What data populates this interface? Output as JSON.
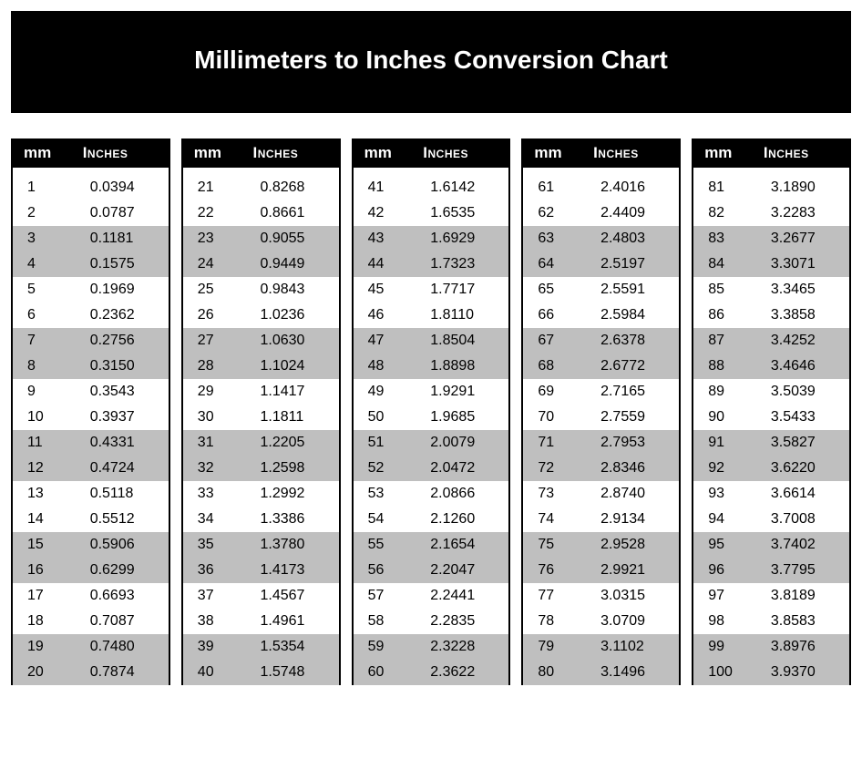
{
  "title": "Millimeters to Inches Conversion Chart",
  "header_mm": "mm",
  "header_in": "Inches",
  "colors": {
    "title_bg": "#000000",
    "title_fg": "#ffffff",
    "header_bg": "#000000",
    "header_fg": "#ffffff",
    "row_shade": "#bfbfbf",
    "row_plain": "#ffffff",
    "border": "#000000",
    "text": "#000000"
  },
  "typography": {
    "title_fontsize_pt": 21,
    "header_fontsize_pt": 13,
    "body_fontsize_pt": 12,
    "font_family": "Arial"
  },
  "layout": {
    "columns": 5,
    "rows_per_column": 20,
    "shade_pattern": "pairs of 2 shaded after every 2 plain, starting at row 3"
  },
  "tables": [
    {
      "rows": [
        {
          "mm": "1",
          "in": "0.0394",
          "shade": false
        },
        {
          "mm": "2",
          "in": "0.0787",
          "shade": false
        },
        {
          "mm": "3",
          "in": "0.1181",
          "shade": true
        },
        {
          "mm": "4",
          "in": "0.1575",
          "shade": true
        },
        {
          "mm": "5",
          "in": "0.1969",
          "shade": false
        },
        {
          "mm": "6",
          "in": "0.2362",
          "shade": false
        },
        {
          "mm": "7",
          "in": "0.2756",
          "shade": true
        },
        {
          "mm": "8",
          "in": "0.3150",
          "shade": true
        },
        {
          "mm": "9",
          "in": "0.3543",
          "shade": false
        },
        {
          "mm": "10",
          "in": "0.3937",
          "shade": false
        },
        {
          "mm": "11",
          "in": "0.4331",
          "shade": true
        },
        {
          "mm": "12",
          "in": "0.4724",
          "shade": true
        },
        {
          "mm": "13",
          "in": "0.5118",
          "shade": false
        },
        {
          "mm": "14",
          "in": "0.5512",
          "shade": false
        },
        {
          "mm": "15",
          "in": "0.5906",
          "shade": true
        },
        {
          "mm": "16",
          "in": "0.6299",
          "shade": true
        },
        {
          "mm": "17",
          "in": "0.6693",
          "shade": false
        },
        {
          "mm": "18",
          "in": "0.7087",
          "shade": false
        },
        {
          "mm": "19",
          "in": "0.7480",
          "shade": true
        },
        {
          "mm": "20",
          "in": "0.7874",
          "shade": true
        }
      ]
    },
    {
      "rows": [
        {
          "mm": "21",
          "in": "0.8268",
          "shade": false
        },
        {
          "mm": "22",
          "in": "0.8661",
          "shade": false
        },
        {
          "mm": "23",
          "in": "0.9055",
          "shade": true
        },
        {
          "mm": "24",
          "in": "0.9449",
          "shade": true
        },
        {
          "mm": "25",
          "in": "0.9843",
          "shade": false
        },
        {
          "mm": "26",
          "in": "1.0236",
          "shade": false
        },
        {
          "mm": "27",
          "in": "1.0630",
          "shade": true
        },
        {
          "mm": "28",
          "in": "1.1024",
          "shade": true
        },
        {
          "mm": "29",
          "in": "1.1417",
          "shade": false
        },
        {
          "mm": "30",
          "in": "1.1811",
          "shade": false
        },
        {
          "mm": "31",
          "in": "1.2205",
          "shade": true
        },
        {
          "mm": "32",
          "in": "1.2598",
          "shade": true
        },
        {
          "mm": "33",
          "in": "1.2992",
          "shade": false
        },
        {
          "mm": "34",
          "in": "1.3386",
          "shade": false
        },
        {
          "mm": "35",
          "in": "1.3780",
          "shade": true
        },
        {
          "mm": "36",
          "in": "1.4173",
          "shade": true
        },
        {
          "mm": "37",
          "in": "1.4567",
          "shade": false
        },
        {
          "mm": "38",
          "in": "1.4961",
          "shade": false
        },
        {
          "mm": "39",
          "in": "1.5354",
          "shade": true
        },
        {
          "mm": "40",
          "in": "1.5748",
          "shade": true
        }
      ]
    },
    {
      "rows": [
        {
          "mm": "41",
          "in": "1.6142",
          "shade": false
        },
        {
          "mm": "42",
          "in": "1.6535",
          "shade": false
        },
        {
          "mm": "43",
          "in": "1.6929",
          "shade": true
        },
        {
          "mm": "44",
          "in": "1.7323",
          "shade": true
        },
        {
          "mm": "45",
          "in": "1.7717",
          "shade": false
        },
        {
          "mm": "46",
          "in": "1.8110",
          "shade": false
        },
        {
          "mm": "47",
          "in": "1.8504",
          "shade": true
        },
        {
          "mm": "48",
          "in": "1.8898",
          "shade": true
        },
        {
          "mm": "49",
          "in": "1.9291",
          "shade": false
        },
        {
          "mm": "50",
          "in": "1.9685",
          "shade": false
        },
        {
          "mm": "51",
          "in": "2.0079",
          "shade": true
        },
        {
          "mm": "52",
          "in": "2.0472",
          "shade": true
        },
        {
          "mm": "53",
          "in": "2.0866",
          "shade": false
        },
        {
          "mm": "54",
          "in": "2.1260",
          "shade": false
        },
        {
          "mm": "55",
          "in": "2.1654",
          "shade": true
        },
        {
          "mm": "56",
          "in": "2.2047",
          "shade": true
        },
        {
          "mm": "57",
          "in": "2.2441",
          "shade": false
        },
        {
          "mm": "58",
          "in": "2.2835",
          "shade": false
        },
        {
          "mm": "59",
          "in": "2.3228",
          "shade": true
        },
        {
          "mm": "60",
          "in": "2.3622",
          "shade": true
        }
      ]
    },
    {
      "rows": [
        {
          "mm": "61",
          "in": "2.4016",
          "shade": false
        },
        {
          "mm": "62",
          "in": "2.4409",
          "shade": false
        },
        {
          "mm": "63",
          "in": "2.4803",
          "shade": true
        },
        {
          "mm": "64",
          "in": "2.5197",
          "shade": true
        },
        {
          "mm": "65",
          "in": "2.5591",
          "shade": false
        },
        {
          "mm": "66",
          "in": "2.5984",
          "shade": false
        },
        {
          "mm": "67",
          "in": "2.6378",
          "shade": true
        },
        {
          "mm": "68",
          "in": "2.6772",
          "shade": true
        },
        {
          "mm": "69",
          "in": "2.7165",
          "shade": false
        },
        {
          "mm": "70",
          "in": "2.7559",
          "shade": false
        },
        {
          "mm": "71",
          "in": "2.7953",
          "shade": true
        },
        {
          "mm": "72",
          "in": "2.8346",
          "shade": true
        },
        {
          "mm": "73",
          "in": "2.8740",
          "shade": false
        },
        {
          "mm": "74",
          "in": "2.9134",
          "shade": false
        },
        {
          "mm": "75",
          "in": "2.9528",
          "shade": true
        },
        {
          "mm": "76",
          "in": "2.9921",
          "shade": true
        },
        {
          "mm": "77",
          "in": "3.0315",
          "shade": false
        },
        {
          "mm": "78",
          "in": "3.0709",
          "shade": false
        },
        {
          "mm": "79",
          "in": "3.1102",
          "shade": true
        },
        {
          "mm": "80",
          "in": "3.1496",
          "shade": true
        }
      ]
    },
    {
      "rows": [
        {
          "mm": "81",
          "in": "3.1890",
          "shade": false
        },
        {
          "mm": "82",
          "in": "3.2283",
          "shade": false
        },
        {
          "mm": "83",
          "in": "3.2677",
          "shade": true
        },
        {
          "mm": "84",
          "in": "3.3071",
          "shade": true
        },
        {
          "mm": "85",
          "in": "3.3465",
          "shade": false
        },
        {
          "mm": "86",
          "in": "3.3858",
          "shade": false
        },
        {
          "mm": "87",
          "in": "3.4252",
          "shade": true
        },
        {
          "mm": "88",
          "in": "3.4646",
          "shade": true
        },
        {
          "mm": "89",
          "in": "3.5039",
          "shade": false
        },
        {
          "mm": "90",
          "in": "3.5433",
          "shade": false
        },
        {
          "mm": "91",
          "in": "3.5827",
          "shade": true
        },
        {
          "mm": "92",
          "in": "3.6220",
          "shade": true
        },
        {
          "mm": "93",
          "in": "3.6614",
          "shade": false
        },
        {
          "mm": "94",
          "in": "3.7008",
          "shade": false
        },
        {
          "mm": "95",
          "in": "3.7402",
          "shade": true
        },
        {
          "mm": "96",
          "in": "3.7795",
          "shade": true
        },
        {
          "mm": "97",
          "in": "3.8189",
          "shade": false
        },
        {
          "mm": "98",
          "in": "3.8583",
          "shade": false
        },
        {
          "mm": "99",
          "in": "3.8976",
          "shade": true
        },
        {
          "mm": "100",
          "in": "3.9370",
          "shade": true
        }
      ]
    }
  ]
}
